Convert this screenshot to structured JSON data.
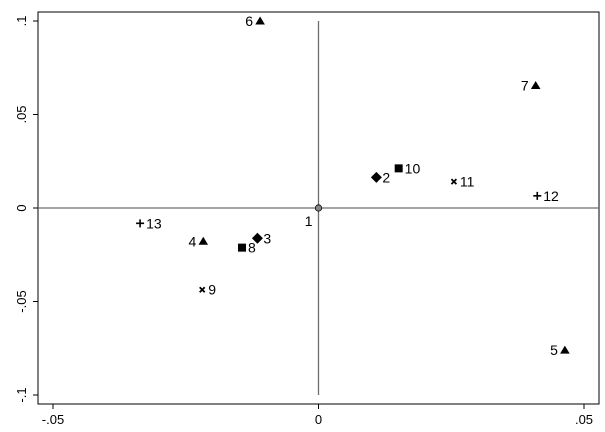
{
  "chart_data": {
    "type": "scatter",
    "title": "",
    "xlabel": "",
    "ylabel": "",
    "xlim": [
      -0.05,
      0.05
    ],
    "ylim": [
      -0.1,
      0.1
    ],
    "grid": false,
    "reference_lines": [
      {
        "axis": "x",
        "value": 0
      },
      {
        "axis": "y",
        "value": 0
      }
    ],
    "x_ticks": [
      {
        "value": -0.05,
        "label": "-.05"
      },
      {
        "value": 0,
        "label": "0"
      },
      {
        "value": 0.05,
        "label": ".05"
      }
    ],
    "y_ticks": [
      {
        "value": 0.1,
        "label": ".1"
      },
      {
        "value": 0.05,
        "label": ".05"
      },
      {
        "value": 0,
        "label": "0"
      },
      {
        "value": -0.05,
        "label": "-.05"
      },
      {
        "value": -0.1,
        "label": "-.1"
      }
    ],
    "points": [
      {
        "label": "1",
        "x": 0.0,
        "y": 0.0,
        "marker": "circle",
        "label_pos": "left-below"
      },
      {
        "label": "2",
        "x": 0.0109,
        "y": 0.0164,
        "marker": "diamond",
        "label_pos": "right"
      },
      {
        "label": "3",
        "x": -0.0115,
        "y": -0.0162,
        "marker": "diamond",
        "label_pos": "right"
      },
      {
        "label": "4",
        "x": -0.0217,
        "y": -0.0178,
        "marker": "triangle",
        "label_pos": "left"
      },
      {
        "label": "5",
        "x": 0.0464,
        "y": -0.076,
        "marker": "triangle",
        "label_pos": "left"
      },
      {
        "label": "6",
        "x": -0.011,
        "y": 0.1,
        "marker": "triangle",
        "label_pos": "left"
      },
      {
        "label": "7",
        "x": 0.0409,
        "y": 0.0655,
        "marker": "triangle",
        "label_pos": "left"
      },
      {
        "label": "8",
        "x": -0.0144,
        "y": -0.0212,
        "marker": "square",
        "label_pos": "right"
      },
      {
        "label": "9",
        "x": -0.0219,
        "y": -0.0437,
        "marker": "x",
        "label_pos": "right"
      },
      {
        "label": "10",
        "x": 0.0151,
        "y": 0.0212,
        "marker": "square",
        "label_pos": "right"
      },
      {
        "label": "11",
        "x": 0.0255,
        "y": 0.0141,
        "marker": "x",
        "label_pos": "right"
      },
      {
        "label": "12",
        "x": 0.0412,
        "y": 0.0065,
        "marker": "plus",
        "label_pos": "right"
      },
      {
        "label": "13",
        "x": -0.0336,
        "y": -0.0082,
        "marker": "plus",
        "label_pos": "right"
      }
    ]
  }
}
